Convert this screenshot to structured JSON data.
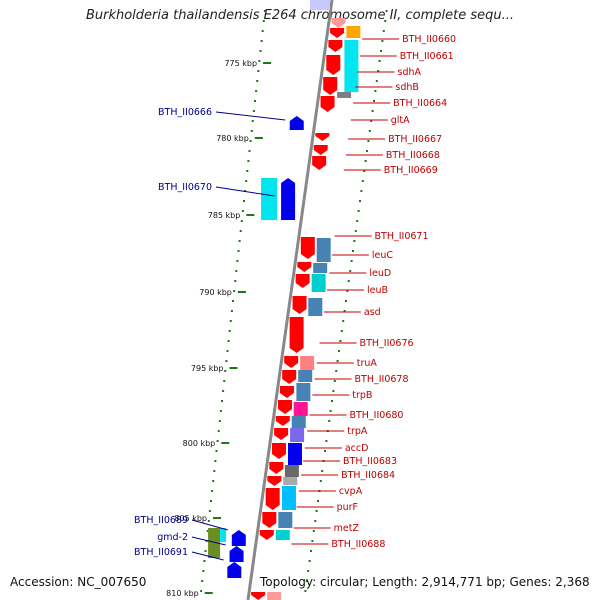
{
  "title": "Burkholderia thailandensis E264 chromosome II, complete sequ...",
  "footer": {
    "accession": "Accession: NC_007650",
    "topology": "Topology: circular; Length: 2,914,771 bp; Genes: 2,368"
  },
  "colors": {
    "forward_gene": "#ff0000",
    "reverse_gene": "#0000ee",
    "right_label": "#c00000",
    "left_label": "#00008b",
    "tick": "#1a7a1a",
    "backbone": "#888888"
  },
  "ticks": [
    {
      "label": "775 kbp"
    },
    {
      "label": "780 kbp"
    },
    {
      "label": "785 kbp"
    },
    {
      "label": "790 kbp"
    },
    {
      "label": "795 kbp"
    },
    {
      "label": "800 kbp"
    },
    {
      "label": "805 kbp"
    },
    {
      "label": "810 kbp"
    }
  ],
  "right_labels": [
    "BTH_II0660",
    "BTH_II0661",
    "sdhA",
    "sdhB",
    "BTH_II0664",
    "gltA",
    "BTH_II0667",
    "BTH_II0668",
    "BTH_II0669",
    "BTH_II0671",
    "leuC",
    "leuD",
    "leuB",
    "asd",
    "BTH_II0676",
    "truA",
    "BTH_II0678",
    "trpB",
    "BTH_II0680",
    "trpA",
    "accD",
    "BTH_II0683",
    "BTH_II0684",
    "cvpA",
    "purF",
    "metZ",
    "BTH_II0688"
  ],
  "left_labels": [
    "BTH_II0666",
    "BTH_II0670",
    "BTH_II0689",
    "gmd-2",
    "BTH_II0691"
  ]
}
